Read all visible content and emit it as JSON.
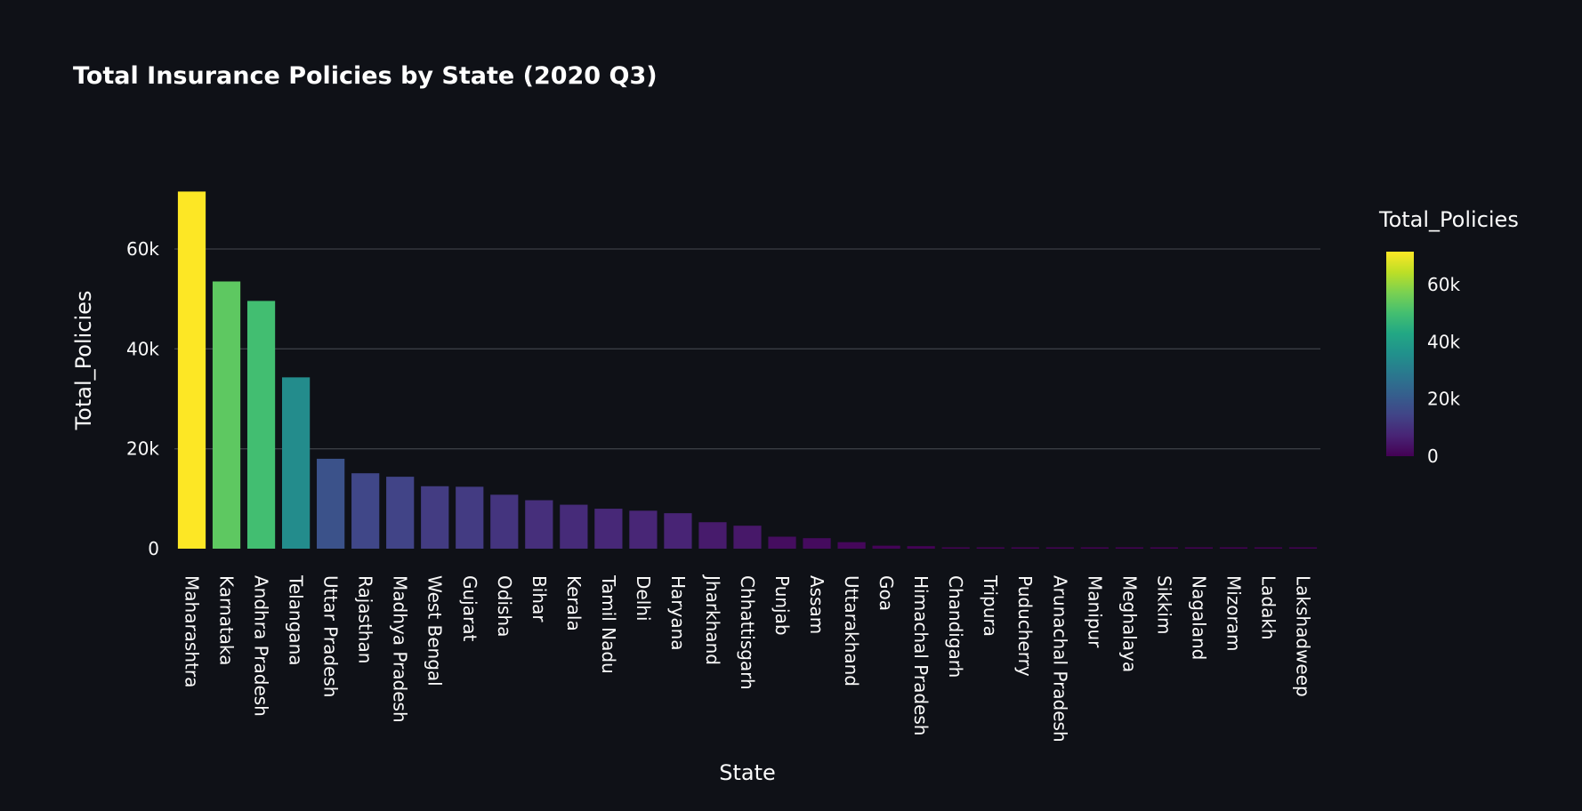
{
  "chart_data": {
    "type": "bar",
    "title": "Total Insurance Policies by State (2020 Q3)",
    "xlabel": "State",
    "ylabel": "Total_Policies",
    "ylim": [
      0,
      75000
    ],
    "yticks": [
      0,
      20000,
      40000,
      60000
    ],
    "ytick_labels": [
      "0",
      "20k",
      "40k",
      "60k"
    ],
    "grid": true,
    "colorscale": "viridis",
    "colorbar": {
      "title": "Total_Policies",
      "range": [
        0,
        71500
      ],
      "ticks": [
        0,
        20000,
        40000,
        60000
      ],
      "tick_labels": [
        "0",
        "20k",
        "40k",
        "60k"
      ]
    },
    "categories": [
      "Maharashtra",
      "Karnataka",
      "Andhra Pradesh",
      "Telangana",
      "Uttar Pradesh",
      "Rajasthan",
      "Madhya Pradesh",
      "West Bengal",
      "Gujarat",
      "Odisha",
      "Bihar",
      "Kerala",
      "Tamil Nadu",
      "Delhi",
      "Haryana",
      "Jharkhand",
      "Chhattisgarh",
      "Punjab",
      "Assam",
      "Uttarakhand",
      "Goa",
      "Himachal Pradesh",
      "Chandigarh",
      "Tripura",
      "Puducherry",
      "Arunachal Pradesh",
      "Manipur",
      "Meghalaya",
      "Sikkim",
      "Nagaland",
      "Mizoram",
      "Ladakh",
      "Lakshadweep"
    ],
    "values": [
      71500,
      53500,
      49600,
      34300,
      18000,
      15100,
      14400,
      12500,
      12400,
      10800,
      9700,
      8800,
      8000,
      7600,
      7100,
      5300,
      4600,
      2400,
      2100,
      1300,
      600,
      500,
      180,
      150,
      130,
      110,
      90,
      80,
      70,
      60,
      50,
      40,
      20
    ]
  }
}
